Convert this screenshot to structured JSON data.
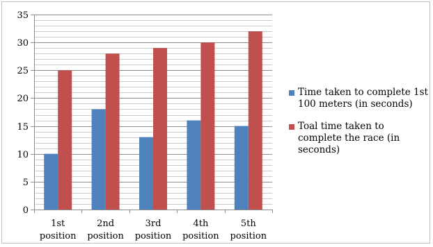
{
  "chart_data": {
    "type": "bar",
    "title": "",
    "xlabel": "",
    "ylabel": "",
    "categories": [
      "1st position",
      "2nd position",
      "3rd position",
      "4th position",
      "5th position"
    ],
    "category_lines": [
      [
        "1st",
        "position"
      ],
      [
        "2nd",
        "position"
      ],
      [
        "3rd",
        "position"
      ],
      [
        "4th",
        "position"
      ],
      [
        "5th",
        "position"
      ]
    ],
    "series": [
      {
        "name": "Time taken to complete 1st 100 meters (in seconds)",
        "values": [
          10,
          18,
          13,
          16,
          15
        ],
        "color": "#4f81bd"
      },
      {
        "name": "Toal time taken to complete the race (in seconds)",
        "values": [
          25,
          28,
          29,
          30,
          32
        ],
        "color": "#c0504d"
      }
    ],
    "ylim": [
      0,
      35
    ],
    "y_ticks": [
      0,
      5,
      10,
      15,
      20,
      25,
      30,
      35
    ],
    "minor_grid_step": 1,
    "grid": true,
    "legend_position": "right"
  }
}
